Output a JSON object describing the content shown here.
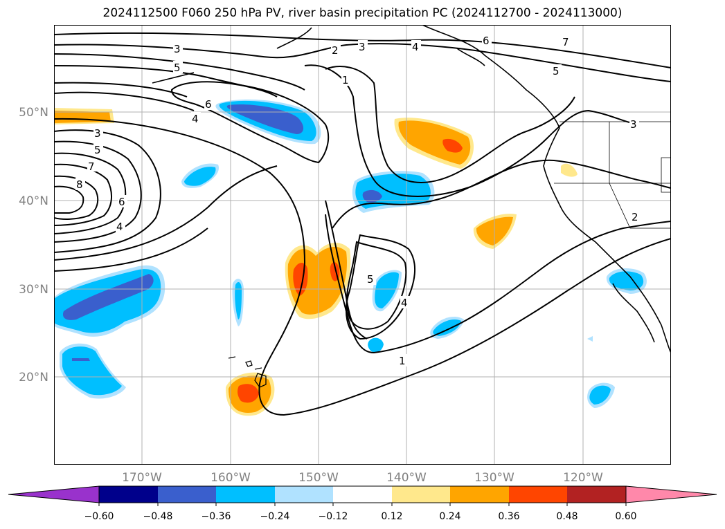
{
  "title": "2024112500 F060 250 hPa PV, river basin precipitation PC (2024112700 - 2024113000)",
  "axes": {
    "lat_ticks": [
      "50°N",
      "40°N",
      "30°N",
      "20°N"
    ],
    "lon_ticks": [
      "170°W",
      "160°W",
      "150°W",
      "140°W",
      "130°W",
      "120°W"
    ]
  },
  "contour_labels": [
    "3",
    "5",
    "6",
    "4",
    "3",
    "5",
    "7",
    "8",
    "6",
    "4",
    "2",
    "3",
    "4",
    "1",
    "6",
    "7",
    "5",
    "3",
    "2",
    "5",
    "4",
    "1"
  ],
  "colorbar": {
    "ticks": [
      "−0.60",
      "−0.48",
      "−0.36",
      "−0.24",
      "−0.12",
      "0.12",
      "0.24",
      "0.36",
      "0.48",
      "0.60"
    ],
    "colors": [
      "#9932cc",
      "#00008b",
      "#3a5fcd",
      "#00bfff",
      "#b0e2ff",
      "#ffffff",
      "#ffe88c",
      "#ffa500",
      "#ff4500",
      "#b22222",
      "#ff88aa"
    ]
  },
  "fill_colors": {
    "light_blue": "#b0e2ff",
    "blue": "#00bfff",
    "dark_blue": "#3a5fcd",
    "yellow": "#ffe88c",
    "orange": "#ffa500",
    "red": "#ff4500"
  }
}
